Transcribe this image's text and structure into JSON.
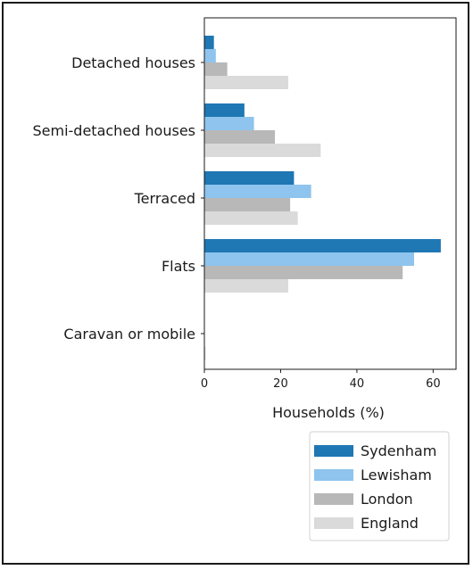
{
  "chart_data": {
    "type": "bar",
    "orientation": "horizontal",
    "title": "",
    "xlabel": "Households (%)",
    "ylabel": "",
    "xlim": [
      0,
      66
    ],
    "xticks": [
      0,
      20,
      40,
      60
    ],
    "grid": false,
    "legend_position": "bottom-right",
    "categories": [
      "Detached houses",
      "Semi-detached houses",
      "Terraced",
      "Flats",
      "Caravan or mobile"
    ],
    "series": [
      {
        "name": "Sydenham",
        "color": "#1f77b4",
        "values": [
          2.5,
          10.5,
          23.5,
          62.0,
          0.0
        ]
      },
      {
        "name": "Lewisham",
        "color": "#8ec4ed",
        "values": [
          3.0,
          13.0,
          28.0,
          55.0,
          0.0
        ]
      },
      {
        "name": "London",
        "color": "#b8b8b8",
        "values": [
          6.0,
          18.5,
          22.5,
          52.0,
          0.1
        ]
      },
      {
        "name": "England",
        "color": "#dadada",
        "values": [
          22.0,
          30.5,
          24.5,
          22.0,
          0.3
        ]
      }
    ]
  }
}
